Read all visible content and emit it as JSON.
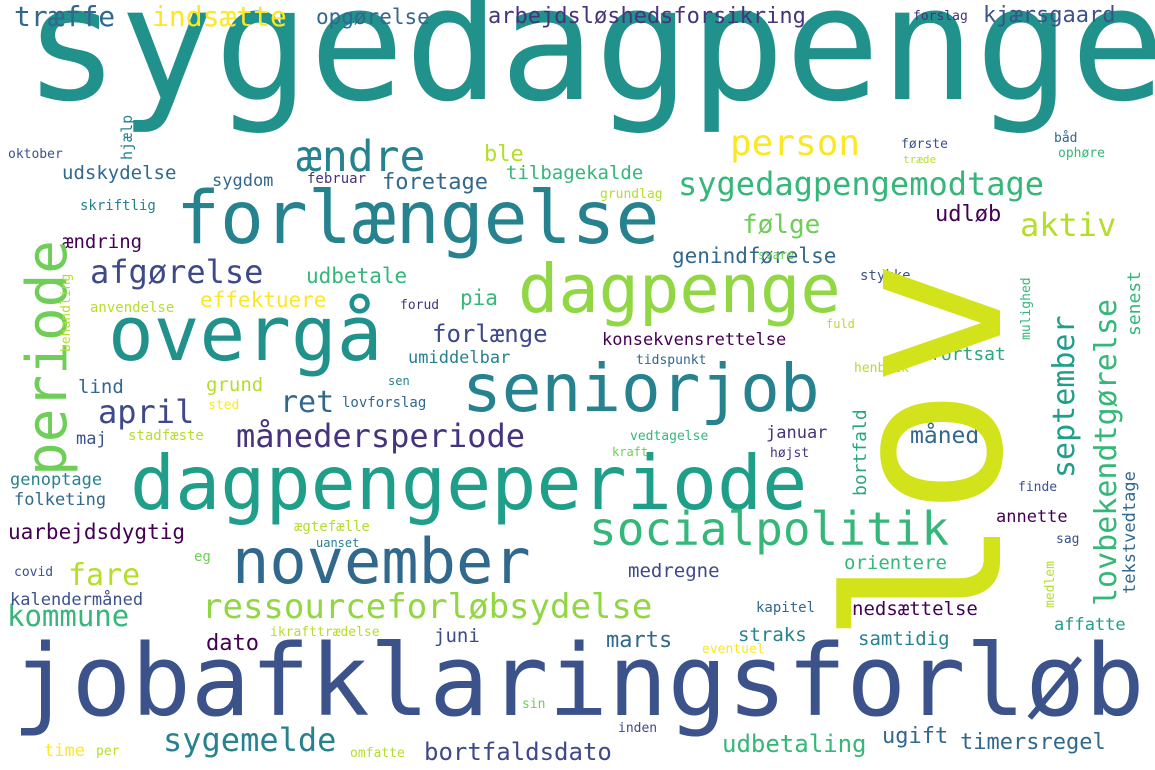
{
  "words": [
    {
      "id": "sygedagpenge",
      "text": "sygedagpenge",
      "color": "#21918c"
    },
    {
      "id": "lov",
      "text": "lov",
      "color": "#d2e21b"
    },
    {
      "id": "jobafklaringsforlob",
      "text": "jobafklaringsforløb",
      "color": "#3b528b"
    },
    {
      "id": "dagpengeperiode",
      "text": "dagpengeperiode",
      "color": "#1f9e89"
    },
    {
      "id": "forlaengelse",
      "text": "forlængelse",
      "color": "#26828e"
    },
    {
      "id": "overgaa",
      "text": "overgå",
      "color": "#21918c"
    },
    {
      "id": "dagpenge",
      "text": "dagpenge",
      "color": "#90d743"
    },
    {
      "id": "seniorjob",
      "text": "seniorjob",
      "color": "#26828e"
    },
    {
      "id": "november",
      "text": "november",
      "color": "#31688e"
    },
    {
      "id": "periode",
      "text": "periode",
      "color": "#6ece58"
    },
    {
      "id": "socialpolitik",
      "text": "socialpolitik",
      "color": "#35b779"
    },
    {
      "id": "ressourceforlobsydelse",
      "text": "ressourceforløbsydelse",
      "color": "#90d743"
    },
    {
      "id": "aendre",
      "text": "ændre",
      "color": "#26828e"
    },
    {
      "id": "sygedagpengemodtage",
      "text": "sygedagpengemodtage",
      "color": "#35b779"
    },
    {
      "id": "person",
      "text": "person",
      "color": "#fde725"
    },
    {
      "id": "maanedersperiode",
      "text": "månedersperiode",
      "color": "#46337e"
    },
    {
      "id": "afgorelse",
      "text": "afgørelse",
      "color": "#3e4989"
    },
    {
      "id": "september",
      "text": "september",
      "color": "#1f9e89"
    },
    {
      "id": "lovbekendtgorelse",
      "text": "lovbekendtgørelse",
      "color": "#35b779"
    },
    {
      "id": "april",
      "text": "april",
      "color": "#3e4989"
    },
    {
      "id": "ret",
      "text": "ret",
      "color": "#31688e"
    },
    {
      "id": "sygemelde",
      "text": "sygemelde",
      "color": "#26828e"
    },
    {
      "id": "kommune",
      "text": "kommune",
      "color": "#35b779"
    },
    {
      "id": "fare",
      "text": "fare",
      "color": "#b5de2b"
    },
    {
      "id": "traeffe",
      "text": "træffe",
      "color": "#31688e"
    },
    {
      "id": "indsaette",
      "text": "indsætte",
      "color": "#fde725"
    },
    {
      "id": "opgorelse",
      "text": "opgørelse",
      "color": "#31688e"
    },
    {
      "id": "arbejdsloshedsforsikring",
      "text": "arbejdsløshedsforsikring",
      "color": "#46337e"
    },
    {
      "id": "forslag",
      "text": "forslag",
      "color": "#46337e"
    },
    {
      "id": "kjaersgaard",
      "text": "kjærsgaard",
      "color": "#3b528b"
    },
    {
      "id": "aktiv",
      "text": "aktiv",
      "color": "#b5de2b"
    },
    {
      "id": "folge",
      "text": "følge",
      "color": "#6ece58"
    },
    {
      "id": "udlob",
      "text": "udløb",
      "color": "#440154"
    },
    {
      "id": "foretage",
      "text": "foretage",
      "color": "#31688e"
    },
    {
      "id": "ble",
      "text": "ble",
      "color": "#b5de2b"
    },
    {
      "id": "tilbagekalde",
      "text": "tilbagekalde",
      "color": "#35b779"
    },
    {
      "id": "udskydelse",
      "text": "udskydelse",
      "color": "#31688e"
    },
    {
      "id": "sygdom",
      "text": "sygdom",
      "color": "#31688e"
    },
    {
      "id": "februar",
      "text": "februar",
      "color": "#46337e"
    },
    {
      "id": "forste",
      "text": "første",
      "color": "#3b528b"
    },
    {
      "id": "traede",
      "text": "træde",
      "color": "#b5de2b"
    },
    {
      "id": "baad",
      "text": "båd",
      "color": "#31688e"
    },
    {
      "id": "ophore",
      "text": "ophøre",
      "color": "#35b779"
    },
    {
      "id": "grundlag",
      "text": "grundlag",
      "color": "#b5de2b"
    },
    {
      "id": "oktober",
      "text": "oktober",
      "color": "#3b528b"
    },
    {
      "id": "skriftlig",
      "text": "skriftlig",
      "color": "#26828e"
    },
    {
      "id": "hjaelp",
      "text": "hjælp",
      "color": "#26828e"
    },
    {
      "id": "aendring",
      "text": "ændring",
      "color": "#440154"
    },
    {
      "id": "udbetale",
      "text": "udbetale",
      "color": "#35b779"
    },
    {
      "id": "genindforelse",
      "text": "genindførelse",
      "color": "#31688e"
    },
    {
      "id": "effektuere",
      "text": "effektuere",
      "color": "#fde725"
    },
    {
      "id": "pia",
      "text": "pia",
      "color": "#35b779"
    },
    {
      "id": "forlaenge",
      "text": "forlænge",
      "color": "#3e4989"
    },
    {
      "id": "konsekvensrettelse",
      "text": "konsekvensrettelse",
      "color": "#440154"
    },
    {
      "id": "umiddelbar",
      "text": "umiddelbar",
      "color": "#26828e"
    },
    {
      "id": "tidspunkt",
      "text": "tidspunkt",
      "color": "#31688e"
    },
    {
      "id": "fortsat",
      "text": "fortsat",
      "color": "#27a77e"
    },
    {
      "id": "svare",
      "text": "svare",
      "color": "#6ece58"
    },
    {
      "id": "forud",
      "text": "forud",
      "color": "#46337e"
    },
    {
      "id": "anvendelse",
      "text": "anvendelse",
      "color": "#b5de2b"
    },
    {
      "id": "behandling",
      "text": "behandling",
      "color": "#b5de2b"
    },
    {
      "id": "stykke",
      "text": "stykke",
      "color": "#3b528b"
    },
    {
      "id": "mulighed",
      "text": "mulighed",
      "color": "#35b779"
    },
    {
      "id": "fuld",
      "text": "fuld",
      "color": "#b5de2b"
    },
    {
      "id": "senest",
      "text": "senest",
      "color": "#35b779"
    },
    {
      "id": "henblik",
      "text": "henblik",
      "color": "#b5de2b"
    },
    {
      "id": "bortfald",
      "text": "bortfald",
      "color": "#27a77e"
    },
    {
      "id": "lind",
      "text": "lind",
      "color": "#31688e"
    },
    {
      "id": "grund",
      "text": "grund",
      "color": "#b5de2b"
    },
    {
      "id": "sted",
      "text": "sted",
      "color": "#fde725"
    },
    {
      "id": "lovforslag",
      "text": "lovforslag",
      "color": "#31688e"
    },
    {
      "id": "sen",
      "text": "sen",
      "color": "#26828e"
    },
    {
      "id": "maaned",
      "text": "måned",
      "color": "#31688e"
    },
    {
      "id": "januar",
      "text": "januar",
      "color": "#46337e"
    },
    {
      "id": "hojst",
      "text": "højst",
      "color": "#46337e"
    },
    {
      "id": "maj",
      "text": "maj",
      "color": "#3b528b"
    },
    {
      "id": "stadfaeste",
      "text": "stadfæste",
      "color": "#b5de2b"
    },
    {
      "id": "vedtagelse",
      "text": "vedtagelse",
      "color": "#35b779"
    },
    {
      "id": "kraft",
      "text": "kraft",
      "color": "#6ece58"
    },
    {
      "id": "genoptage",
      "text": "genoptage",
      "color": "#26828e"
    },
    {
      "id": "folketing",
      "text": "folketing",
      "color": "#31688e"
    },
    {
      "id": "finde",
      "text": "finde",
      "color": "#3b528b"
    },
    {
      "id": "tekstvedtage",
      "text": "tekstvedtage",
      "color": "#31688e"
    },
    {
      "id": "uarbejdsdygtig",
      "text": "uarbejdsdygtig",
      "color": "#440154"
    },
    {
      "id": "aegtefaelle",
      "text": "ægtefælle",
      "color": "#b5de2b"
    },
    {
      "id": "uanset",
      "text": "uanset",
      "color": "#26828e"
    },
    {
      "id": "eg",
      "text": "eg",
      "color": "#6ece58"
    },
    {
      "id": "annette",
      "text": "annette",
      "color": "#440154"
    },
    {
      "id": "sag",
      "text": "sag",
      "color": "#3b528b"
    },
    {
      "id": "covid",
      "text": "covid",
      "color": "#3b528b"
    },
    {
      "id": "medregne",
      "text": "medregne",
      "color": "#3e4989"
    },
    {
      "id": "orientere",
      "text": "orientere",
      "color": "#35b779"
    },
    {
      "id": "medlem",
      "text": "medlem",
      "color": "#b5de2b"
    },
    {
      "id": "kalendermaaned",
      "text": "kalendermåned",
      "color": "#3b528b"
    },
    {
      "id": "kapitel",
      "text": "kapitel",
      "color": "#31688e"
    },
    {
      "id": "nedsaettelse",
      "text": "nedsættelse",
      "color": "#440154"
    },
    {
      "id": "affatte",
      "text": "affatte",
      "color": "#1f9e89"
    },
    {
      "id": "dato",
      "text": "dato",
      "color": "#440154"
    },
    {
      "id": "juni",
      "text": "juni",
      "color": "#3e4989"
    },
    {
      "id": "marts",
      "text": "marts",
      "color": "#31688e"
    },
    {
      "id": "straks",
      "text": "straks",
      "color": "#26828e"
    },
    {
      "id": "samtidig",
      "text": "samtidig",
      "color": "#26828e"
    },
    {
      "id": "ikrafttraedelse",
      "text": "ikrafttrædelse",
      "color": "#b5de2b"
    },
    {
      "id": "eventuel",
      "text": "eventuel",
      "color": "#fde725"
    },
    {
      "id": "sin",
      "text": "sin",
      "color": "#6ece58"
    },
    {
      "id": "inden",
      "text": "inden",
      "color": "#3e4989"
    },
    {
      "id": "udbetaling",
      "text": "udbetaling",
      "color": "#35b779"
    },
    {
      "id": "ugift",
      "text": "ugift",
      "color": "#31688e"
    },
    {
      "id": "timersregel",
      "text": "timersregel",
      "color": "#31688e"
    },
    {
      "id": "bortfaldsdato",
      "text": "bortfaldsdato",
      "color": "#3e4989"
    },
    {
      "id": "time",
      "text": "time",
      "color": "#fde725"
    },
    {
      "id": "per",
      "text": "per",
      "color": "#b5de2b"
    },
    {
      "id": "omfatte",
      "text": "omfatte",
      "color": "#b5de2b"
    }
  ]
}
